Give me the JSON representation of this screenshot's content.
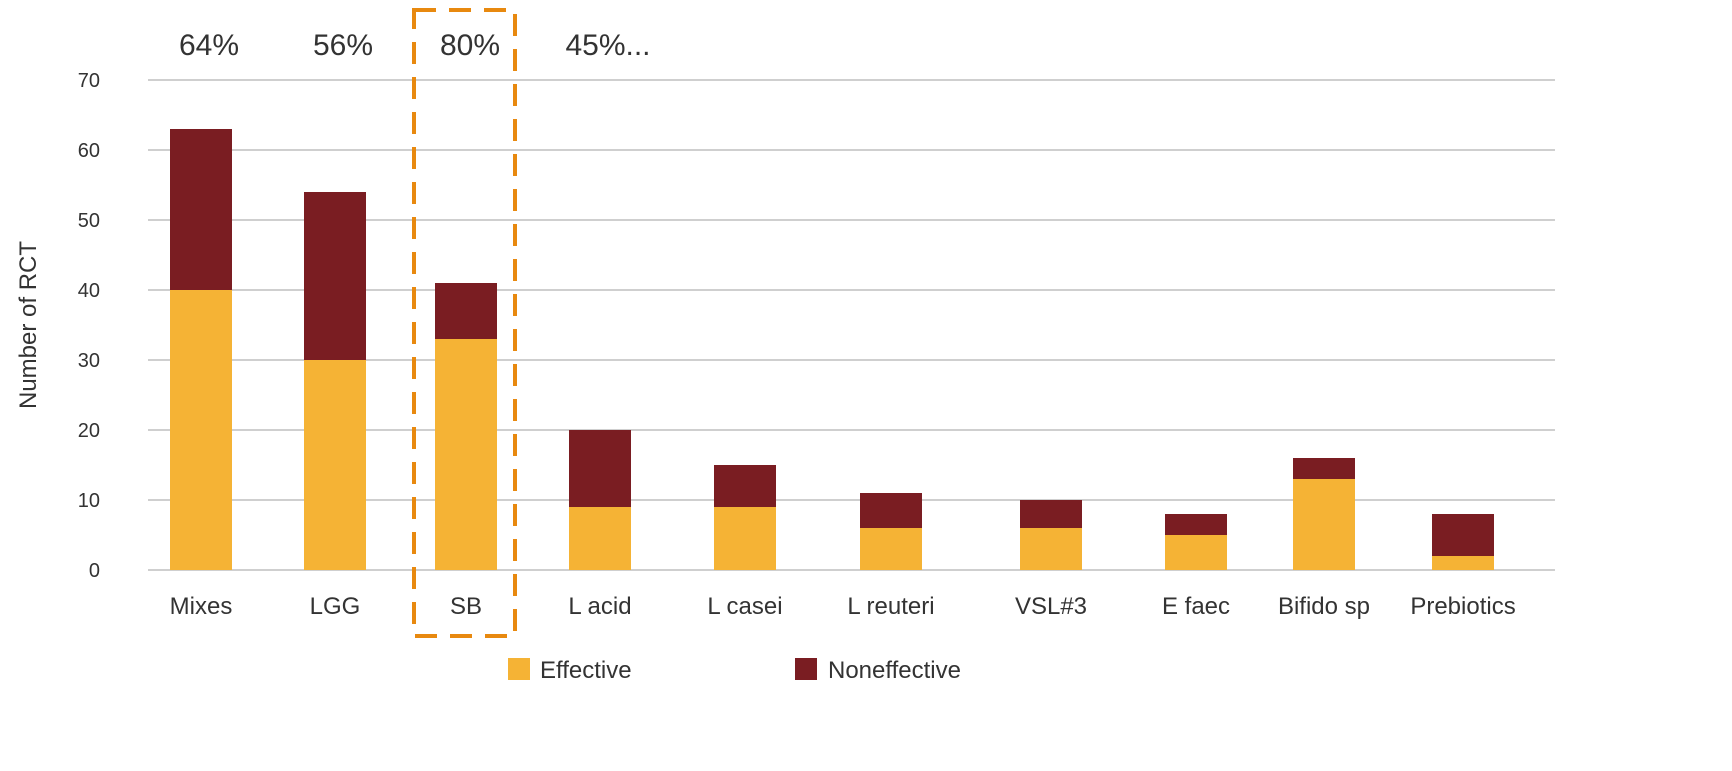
{
  "chart_data": {
    "type": "bar",
    "stacked": true,
    "title": "",
    "xlabel": "",
    "ylabel": "Number of RCT",
    "ylim": [
      0,
      70
    ],
    "yticks": [
      0,
      10,
      20,
      30,
      40,
      50,
      60,
      70
    ],
    "grid": true,
    "legend_position": "bottom",
    "categories": [
      "Mixes",
      "LGG",
      "SB",
      "L acid",
      "L casei",
      "L reuteri",
      "VSL#3",
      "E faec",
      "Bifido sp",
      "Prebiotics"
    ],
    "series": [
      {
        "name": "Effective",
        "color": "#F5B335",
        "values": [
          40,
          30,
          33,
          9,
          9,
          6,
          6,
          5,
          13,
          2
        ]
      },
      {
        "name": "Noneffective",
        "color": "#7A1D22",
        "values": [
          23,
          24,
          8,
          11,
          6,
          5,
          4,
          3,
          3,
          6
        ]
      }
    ],
    "annotations": [
      {
        "category": "Mixes",
        "text": "64%"
      },
      {
        "category": "LGG",
        "text": "56%"
      },
      {
        "category": "SB",
        "text": "80%"
      },
      {
        "category": "L acid",
        "text": "45%..."
      }
    ],
    "highlight": {
      "category": "SB",
      "style": "dashed-box",
      "color": "#E8890F"
    }
  }
}
